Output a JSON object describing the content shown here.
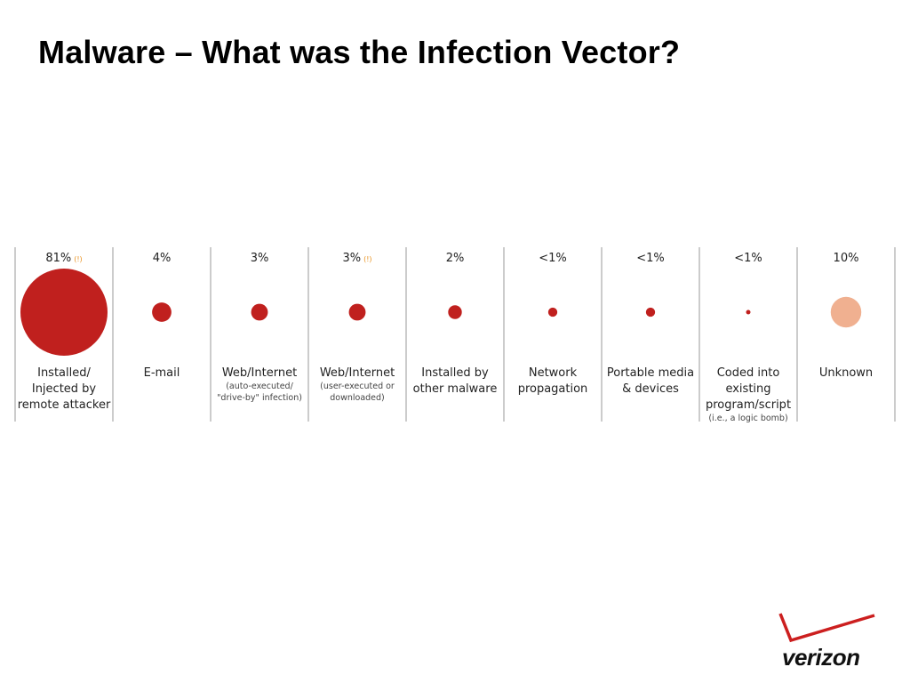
{
  "slide": {
    "title": "Malware – What was the Infection Vector?"
  },
  "chart_data": {
    "type": "bubble",
    "title": "",
    "categories": [
      {
        "label_lines": [
          "Installed/",
          "Injected by",
          "remote attacker"
        ],
        "note_lines": [],
        "value_label": "81%",
        "flag": "(!)",
        "value": 81,
        "color": "#c0201e"
      },
      {
        "label_lines": [
          "E-mail"
        ],
        "note_lines": [],
        "value_label": "4%",
        "flag": "",
        "value": 4,
        "color": "#c0201e"
      },
      {
        "label_lines": [
          "Web/Internet"
        ],
        "note_lines": [
          "(auto-executed/",
          "\"drive-by\" infection)"
        ],
        "value_label": "3%",
        "flag": "",
        "value": 3,
        "color": "#c0201e"
      },
      {
        "label_lines": [
          "Web/Internet"
        ],
        "note_lines": [
          "(user-executed or",
          "downloaded)"
        ],
        "value_label": "3%",
        "flag": "(!)",
        "value": 3,
        "color": "#c0201e"
      },
      {
        "label_lines": [
          "Installed by",
          "other malware"
        ],
        "note_lines": [],
        "value_label": "2%",
        "flag": "",
        "value": 2,
        "color": "#c0201e"
      },
      {
        "label_lines": [
          "Network",
          "propagation"
        ],
        "note_lines": [],
        "value_label": "<1%",
        "flag": "",
        "value": 0.9,
        "color": "#c0201e"
      },
      {
        "label_lines": [
          "Portable media",
          "& devices"
        ],
        "note_lines": [],
        "value_label": "<1%",
        "flag": "",
        "value": 0.9,
        "color": "#c0201e"
      },
      {
        "label_lines": [
          "Coded into",
          "existing",
          "program/script"
        ],
        "note_lines": [
          "(i.e., a logic bomb)"
        ],
        "value_label": "<1%",
        "flag": "",
        "value": 0.2,
        "color": "#c0201e"
      },
      {
        "label_lines": [
          "Unknown"
        ],
        "note_lines": [],
        "value_label": "10%",
        "flag": "",
        "value": 10,
        "color": "#f0b090"
      }
    ],
    "flag_color": "#e8901c",
    "divider_color": "#9a9a9a"
  },
  "logo": {
    "text": "verizon",
    "check_color": "#cc1f1f"
  }
}
